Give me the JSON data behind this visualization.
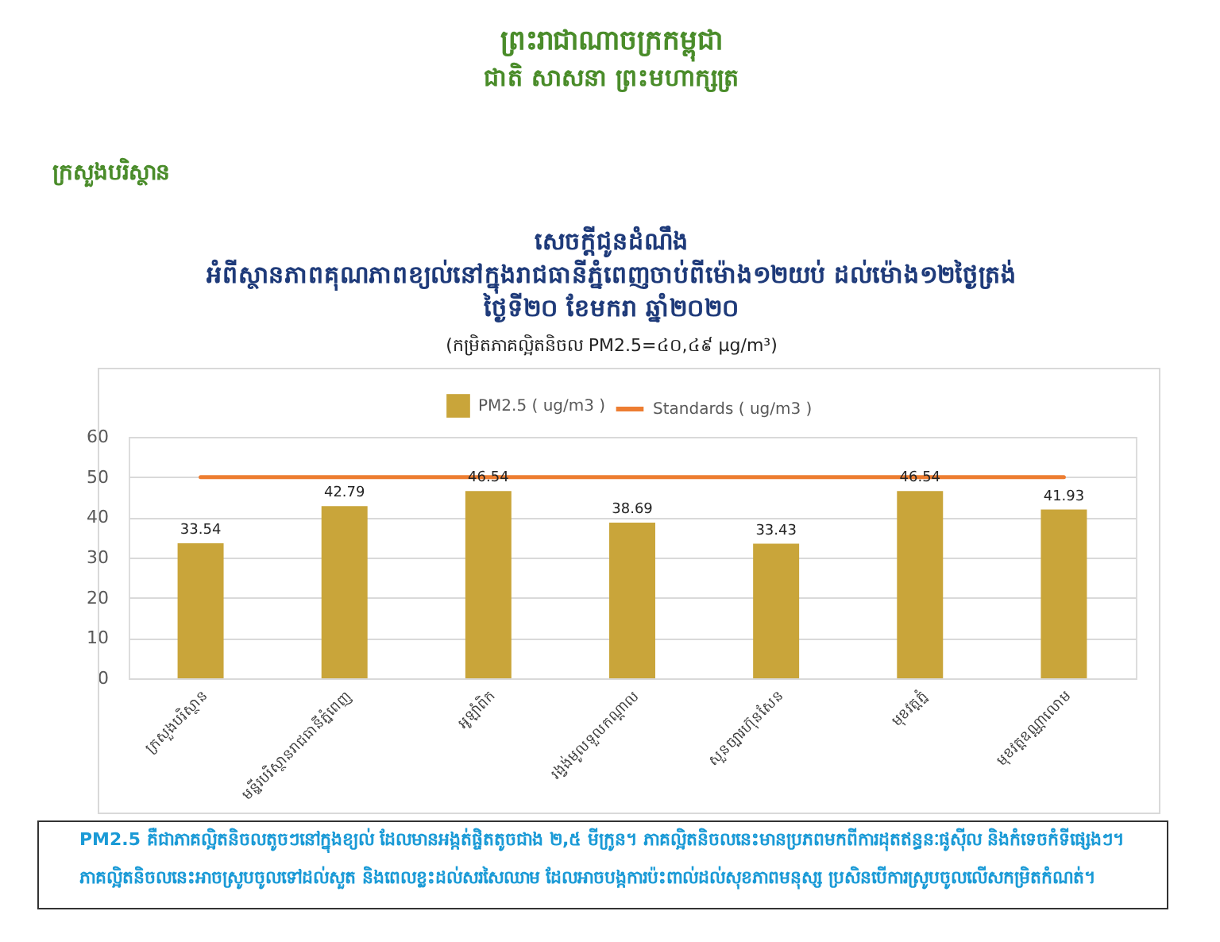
{
  "chart_data": {
    "type": "bar",
    "title": "សេចក្តីជូនដំណឹង\nអំពីស្ថានភាពគុណភាពខ្យល់នៅក្នុងរាជធានីភ្នំពេញចាប់ពីម៉ោង១២យប់ ដល់ម៉ោង១២ថ្ងៃត្រង់\nថ្ងៃទី២០ ខែមករា ឆ្នាំ២០២០",
    "subtitle": "(កម្រិតភាគល្អិតនិចល PM2.5=៤០,៤៩ µg/m³)",
    "annotations": [
      "ព្រះរាជាណាចក្រកម្ពុជា",
      "ជាតិ សាសនា ព្រះមហាក្សត្រ",
      "ក្រសួងបរិស្ថាន",
      "PM2.5 គឺជាភាគល្អិតនិចលតូចៗនៅក្នុងខ្យល់ ដែលមានអង្កត់ផ្ចិតតូចជាង ២,៥ មីក្រូន។ ភាគល្អិតនិចលនេះមានប្រភពមកពីការដុតឥន្ធនៈផូស៊ីល និងកំទេចកំទីផ្សេងៗ។\nភាគល្អិតនិចលនេះអាចស្រូបចូលទៅដល់សួត និងពេលខ្លះដល់សរសៃឈាម ដែលអាចបង្កការប៉ះពាល់ដល់សុខភាពមនុស្ស ប្រសិនបើការស្រូបចូលលើសកម្រិតកំណត់។"
    ],
    "categories": [
      "ក្រសួងបរិស្ថាន",
      "មន្ទីរបរិស្ថានរាជធានីភ្នំពេញ",
      "អូឡាំពិក",
      "រង្វង់មូលទួលកណ្ដាល",
      "សួនច្បារហ៊ុនសែន",
      "មុខវត្តភ្នំ",
      "មុខវត្តឧណ្ណាលោម"
    ],
    "series": [
      {
        "name": "PM2.5 ( ug/m3 )",
        "color": "#c9a53a",
        "values": [
          33.54,
          42.79,
          46.54,
          38.69,
          33.43,
          46.54,
          41.93
        ],
        "value_labels": [
          "33.54",
          "42.79",
          "46.54",
          "38.69",
          "33.43",
          "46.54",
          "41.93"
        ]
      },
      {
        "name": "Standards ( ug/m3 )",
        "type": "line",
        "color": "#ed7d31",
        "values": [
          50,
          50,
          50,
          50,
          50,
          50,
          50
        ]
      }
    ],
    "ylim": [
      0,
      60
    ],
    "yticks": [
      0,
      10,
      20,
      30,
      40,
      50,
      60
    ],
    "grid": "y",
    "legend": "top"
  }
}
